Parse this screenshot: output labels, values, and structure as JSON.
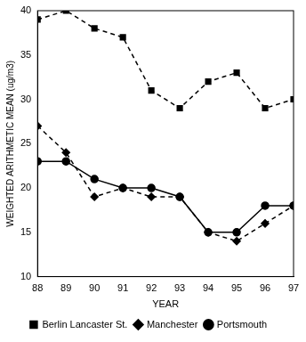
{
  "chart_data": {
    "type": "line",
    "xlabel": "YEAR",
    "ylabel": "WEIGHTED ARITHMETIC MEAN (ug/m3)",
    "categories": [
      "88",
      "89",
      "90",
      "91",
      "92",
      "93",
      "94",
      "95",
      "96",
      "97"
    ],
    "series": [
      {
        "name": "Berlin Lancaster St.",
        "color": "#000000",
        "marker": "square",
        "line_style": "dashed",
        "values": [
          39,
          40,
          38,
          37,
          31,
          29,
          32,
          33,
          29,
          30
        ]
      },
      {
        "name": "Manchester",
        "color": "#000000",
        "marker": "diamond",
        "line_style": "dashed",
        "values": [
          27,
          24,
          19,
          20,
          19,
          19,
          15,
          14,
          16,
          18
        ]
      },
      {
        "name": "Portsmouth",
        "color": "#000000",
        "marker": "circle",
        "line_style": "solid",
        "values": [
          23,
          23,
          21,
          20,
          20,
          19,
          15,
          15,
          18,
          18
        ]
      }
    ],
    "ylim": [
      10,
      40
    ],
    "yticks": [
      10,
      15,
      20,
      25,
      30,
      35,
      40
    ],
    "grid": false,
    "legend": "bottom"
  }
}
